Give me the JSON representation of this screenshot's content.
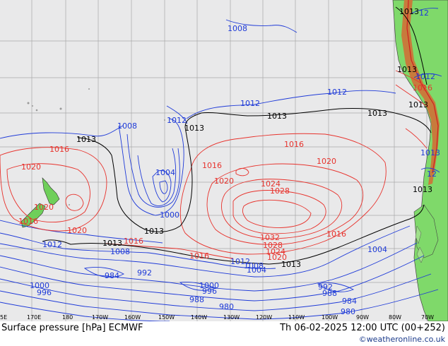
{
  "map": {
    "longitude_ticks": [
      "5E",
      "170E",
      "180",
      "170W",
      "160W",
      "150W",
      "140W",
      "130W",
      "120W",
      "110W",
      "100W",
      "90W",
      "80W",
      "70W"
    ],
    "isobar_labels": {
      "blue": [
        "1008",
        "1013",
        "1012",
        "1012",
        "1012",
        "1008",
        "1012",
        "1004",
        "1000",
        "1008",
        "1012",
        "1008",
        "1012",
        "1004",
        "1000",
        "996",
        "984",
        "992",
        "1000",
        "996",
        "988",
        "980",
        "992",
        "988",
        "984",
        "980",
        "1004",
        "1008",
        "1012",
        "1012",
        "1012"
      ],
      "red": [
        "1016",
        "1020",
        "1020",
        "1016",
        "1020",
        "1016",
        "1016",
        "1020",
        "1024",
        "1028",
        "1028",
        "1032",
        "1024",
        "1020",
        "1016",
        "1016",
        "1020",
        "1016"
      ],
      "black": [
        "1013",
        "1013",
        "1013",
        "1013",
        "1013",
        "1013",
        "1013",
        "1013",
        "1013",
        "1013",
        "1013",
        "1013"
      ]
    },
    "colors": {
      "low": "#1e3ad8",
      "high": "#e8322c",
      "standard": "#000000",
      "ocean": "#e9e9ea",
      "land": "#7fd96a"
    }
  },
  "footer": {
    "title": "Surface pressure [hPa] ECMWF",
    "datetime": "Th 06-02-2025 12:00 UTC (00+252)",
    "credit": "©weatheronline.co.uk"
  }
}
